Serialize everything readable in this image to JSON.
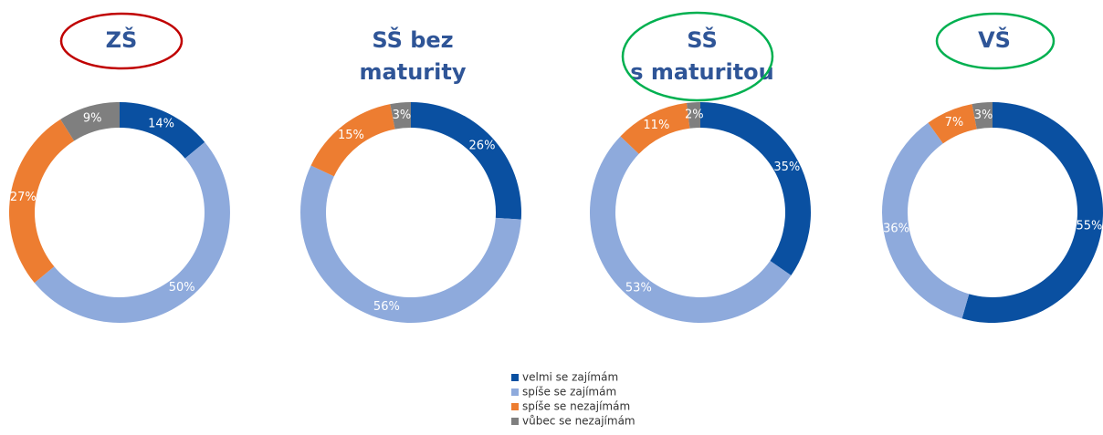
{
  "chart_data": [
    {
      "type": "pie",
      "title": [
        "ZŠ"
      ],
      "highlight": "#c00000",
      "categories": [
        "velmi se zajímám",
        "spíše se zajímám",
        "spíše se nezajímám",
        "vůbec se nezajímám"
      ],
      "values": [
        14,
        50,
        27,
        9
      ],
      "value_labels": [
        "14%",
        "50%",
        "27%",
        "9%"
      ],
      "colors": [
        "#0a50a1",
        "#8eaadc",
        "#ed7d31",
        "#7f7f7f"
      ]
    },
    {
      "type": "pie",
      "title": [
        "SŠ bez",
        "maturity"
      ],
      "categories": [
        "velmi se zajímám",
        "spíše se zajímám",
        "spíše se nezajímám",
        "vůbec se nezajímám"
      ],
      "values": [
        26,
        56,
        15,
        3
      ],
      "value_labels": [
        "26%",
        "56%",
        "15%",
        "3%"
      ],
      "colors": [
        "#0a50a1",
        "#8eaadc",
        "#ed7d31",
        "#7f7f7f"
      ]
    },
    {
      "type": "pie",
      "title": [
        "SŠ",
        "s maturitou"
      ],
      "highlight": "#00b050",
      "categories": [
        "velmi se zajímám",
        "spíše se zajímám",
        "spíše se nezajímám",
        "vůbec se nezajímám"
      ],
      "values": [
        35,
        53,
        11,
        2
      ],
      "value_labels": [
        "35%",
        "53%",
        "11%",
        "2%"
      ],
      "colors": [
        "#0a50a1",
        "#8eaadc",
        "#ed7d31",
        "#7f7f7f"
      ]
    },
    {
      "type": "pie",
      "title": [
        "VŠ"
      ],
      "highlight": "#00b050",
      "categories": [
        "velmi se zajímám",
        "spíše se zajímám",
        "spíše se nezajímám",
        "vůbec se nezajímám"
      ],
      "values": [
        55,
        36,
        7,
        3
      ],
      "value_labels": [
        "55%",
        "36%",
        "7%",
        "3%"
      ],
      "colors": [
        "#0a50a1",
        "#8eaadc",
        "#ed7d31",
        "#7f7f7f"
      ]
    }
  ]
}
